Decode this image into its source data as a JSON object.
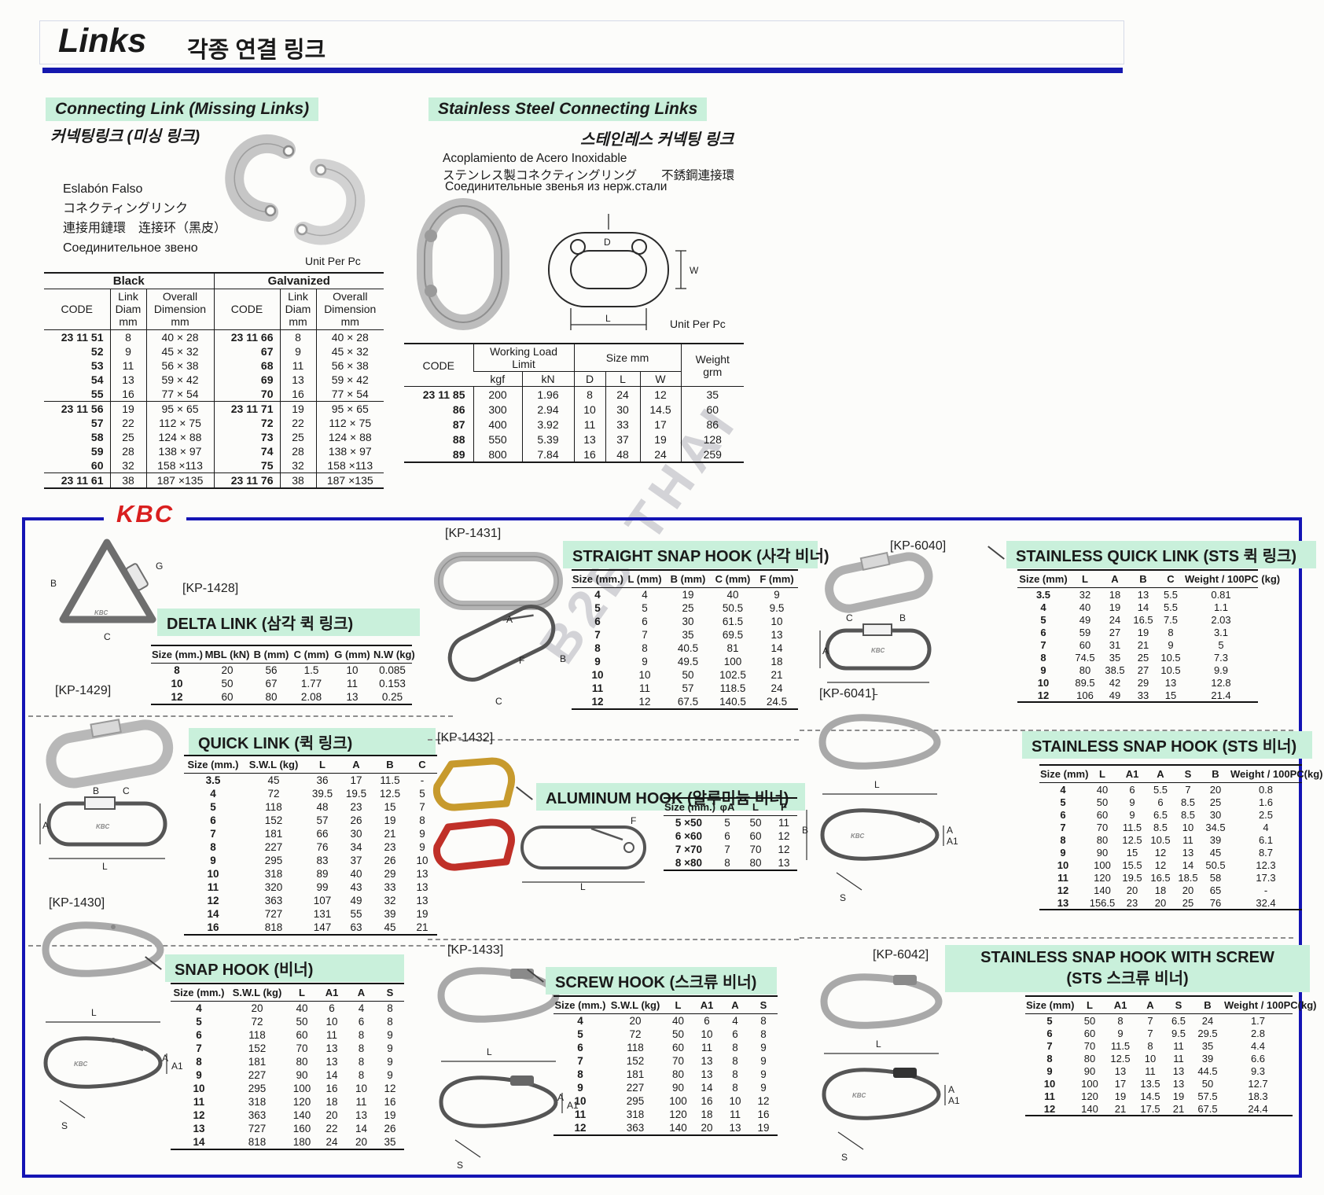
{
  "page": {
    "title_en": "Links",
    "title_ko": "각종 연결 링크",
    "watermark": "B2B THAI"
  },
  "connecting": {
    "title": "Connecting Link (Missing Links)",
    "subtitle_ko": "커넥팅링크 (미싱 링크)",
    "names": [
      "Eslabón Falso",
      "コネクティングリンク",
      "連接用鏈環　连接环（黑皮）",
      "Соединительное звено"
    ],
    "unit": "Unit Per Pc",
    "table": {
      "head": [
        [
          {
            "t": "Black",
            "cs": 3
          },
          {
            "t": "Galvanized",
            "cs": 3
          }
        ],
        [
          {
            "t": "CODE"
          },
          {
            "t": "Link\nDiam\nmm"
          },
          {
            "t": "Overall\nDimension\nmm"
          },
          {
            "t": "CODE"
          },
          {
            "t": "Link\nDiam\nmm"
          },
          {
            "t": "Overall\nDimension\nmm"
          }
        ]
      ],
      "rows": [
        [
          "23 11 51",
          "8",
          "40 × 28",
          "23 11 66",
          "8",
          "40 × 28"
        ],
        [
          "52",
          "9",
          "45 × 32",
          "67",
          "9",
          "45 × 32"
        ],
        [
          "53",
          "11",
          "56 × 38",
          "68",
          "11",
          "56 × 38"
        ],
        [
          "54",
          "13",
          "59 × 42",
          "69",
          "13",
          "59 × 42"
        ],
        [
          "55",
          "16",
          "77 × 54",
          "70",
          "16",
          "77 × 54"
        ],
        [
          "23 11 56",
          "19",
          "95 × 65",
          "23 11 71",
          "19",
          "95 × 65"
        ],
        [
          "57",
          "22",
          "112 × 75",
          "72",
          "22",
          "112 × 75"
        ],
        [
          "58",
          "25",
          "124 × 88",
          "73",
          "25",
          "124 × 88"
        ],
        [
          "59",
          "28",
          "138 × 97",
          "74",
          "28",
          "138 × 97"
        ],
        [
          "60",
          "32",
          "158 ×113",
          "75",
          "32",
          "158 ×113"
        ],
        [
          "23 11 61",
          "38",
          "187 ×135",
          "23 11 76",
          "38",
          "187 ×135"
        ]
      ],
      "seps": [
        5,
        10
      ]
    }
  },
  "stainless": {
    "title": "Stainless Steel Connecting Links",
    "subtitle_ko": "스테인레스 커넥팅 링크",
    "name_es": "Acoplamiento de Acero Inoxidable",
    "name_jp_cn": "ステンレス製コネクティングリング　　不銹鋼連接環",
    "name_ru": "Соединительные звенья из нерж.стали",
    "unit": "Unit Per Pc",
    "diagram_labels": {
      "d": "D",
      "w": "W",
      "l": "L"
    },
    "table": {
      "head": [
        [
          {
            "t": "CODE",
            "rs": 2
          },
          {
            "t": "Working Load\nLimit",
            "cs": 2
          },
          {
            "t": "Size mm",
            "cs": 3
          },
          {
            "t": "Weight\ngrm",
            "rs": 2
          }
        ],
        [
          {
            "t": "kgf"
          },
          {
            "t": "kN"
          },
          {
            "t": "D"
          },
          {
            "t": "L"
          },
          {
            "t": "W"
          }
        ]
      ],
      "rows": [
        [
          "23 11 85",
          "200",
          "1.96",
          "8",
          "24",
          "12",
          "35"
        ],
        [
          "86",
          "300",
          "2.94",
          "10",
          "30",
          "14.5",
          "60"
        ],
        [
          "87",
          "400",
          "3.92",
          "11",
          "33",
          "17",
          "86"
        ],
        [
          "88",
          "550",
          "5.39",
          "13",
          "37",
          "19",
          "128"
        ],
        [
          "89",
          "800",
          "7.84",
          "16",
          "48",
          "24",
          "259"
        ]
      ]
    }
  },
  "kbc": {
    "logo": "KBC",
    "products": {
      "delta": {
        "code": "[KP-1428]",
        "title": "DELTA LINK (삼각 퀵 링크)",
        "labels": {
          "b": "B",
          "c": "C",
          "g": "G"
        },
        "table": {
          "head": [
            [
              "Size (mm.)",
              "MBL (kN)",
              "B (mm)",
              "C (mm)",
              "G (mm)",
              "N.W (kg)"
            ]
          ],
          "rows": [
            [
              "8",
              "20",
              "56",
              "1.5",
              "10",
              "0.085"
            ],
            [
              "10",
              "50",
              "67",
              "1.77",
              "11",
              "0.153"
            ],
            [
              "12",
              "60",
              "80",
              "2.08",
              "13",
              "0.25"
            ]
          ]
        }
      },
      "quick": {
        "code": "[KP-1429]",
        "title": "QUICK LINK (퀵 링크)",
        "labels": {
          "a": "A",
          "b": "B",
          "c": "C",
          "l": "L"
        },
        "table": {
          "head": [
            [
              "Size (mm.)",
              "S.W.L (kg)",
              "L",
              "A",
              "B",
              "C"
            ]
          ],
          "rows": [
            [
              "3.5",
              "45",
              "36",
              "17",
              "11.5",
              "-"
            ],
            [
              "4",
              "72",
              "39.5",
              "19.5",
              "12.5",
              "5"
            ],
            [
              "5",
              "118",
              "48",
              "23",
              "15",
              "7"
            ],
            [
              "6",
              "152",
              "57",
              "26",
              "19",
              "8"
            ],
            [
              "7",
              "181",
              "66",
              "30",
              "21",
              "9"
            ],
            [
              "8",
              "227",
              "76",
              "34",
              "23",
              "9"
            ],
            [
              "9",
              "295",
              "83",
              "37",
              "26",
              "10"
            ],
            [
              "10",
              "318",
              "89",
              "40",
              "29",
              "13"
            ],
            [
              "11",
              "320",
              "99",
              "43",
              "33",
              "13"
            ],
            [
              "12",
              "363",
              "107",
              "49",
              "32",
              "13"
            ],
            [
              "14",
              "727",
              "131",
              "55",
              "39",
              "19"
            ],
            [
              "16",
              "818",
              "147",
              "63",
              "45",
              "21"
            ]
          ]
        }
      },
      "snap": {
        "code": "[KP-1430]",
        "title": "SNAP HOOK (비너)",
        "labels": {
          "l": "L",
          "a": "A",
          "a1": "A1",
          "s": "S"
        },
        "table": {
          "head": [
            [
              "Size (mm.)",
              "S.W.L (kg)",
              "L",
              "A1",
              "A",
              "S"
            ]
          ],
          "rows": [
            [
              "4",
              "20",
              "40",
              "6",
              "4",
              "8"
            ],
            [
              "5",
              "72",
              "50",
              "10",
              "6",
              "8"
            ],
            [
              "6",
              "118",
              "60",
              "11",
              "8",
              "9"
            ],
            [
              "7",
              "152",
              "70",
              "13",
              "8",
              "9"
            ],
            [
              "8",
              "181",
              "80",
              "13",
              "8",
              "9"
            ],
            [
              "9",
              "227",
              "90",
              "14",
              "8",
              "9"
            ],
            [
              "10",
              "295",
              "100",
              "16",
              "10",
              "12"
            ],
            [
              "11",
              "318",
              "120",
              "18",
              "11",
              "16"
            ],
            [
              "12",
              "363",
              "140",
              "20",
              "13",
              "19"
            ],
            [
              "13",
              "727",
              "160",
              "22",
              "14",
              "26"
            ],
            [
              "14",
              "818",
              "180",
              "24",
              "20",
              "35"
            ]
          ]
        }
      },
      "straight": {
        "code": "[KP-1431]",
        "title": "STRAIGHT SNAP HOOK (사각 비너)",
        "labels": {
          "a": "A",
          "b": "B",
          "c": "C",
          "f": "F"
        },
        "table": {
          "head": [
            [
              "Size (mm.)",
              "L (mm)",
              "B (mm)",
              "C (mm)",
              "F (mm)"
            ]
          ],
          "rows": [
            [
              "4",
              "4",
              "19",
              "40",
              "9"
            ],
            [
              "5",
              "5",
              "25",
              "50.5",
              "9.5"
            ],
            [
              "6",
              "6",
              "30",
              "61.5",
              "10"
            ],
            [
              "7",
              "7",
              "35",
              "69.5",
              "13"
            ],
            [
              "8",
              "8",
              "40.5",
              "81",
              "14"
            ],
            [
              "9",
              "9",
              "49.5",
              "100",
              "18"
            ],
            [
              "10",
              "10",
              "50",
              "102.5",
              "21"
            ],
            [
              "11",
              "11",
              "57",
              "118.5",
              "24"
            ],
            [
              "12",
              "12",
              "67.5",
              "140.5",
              "24.5"
            ]
          ]
        }
      },
      "aluminum": {
        "code": "[KP-1432]",
        "title": "ALUMINUM HOOK (알루미늄 비너)",
        "labels": {
          "l": "L",
          "f": "F"
        },
        "table": {
          "head": [
            [
              "Size (mm.)",
              "φA",
              "L",
              "F"
            ]
          ],
          "rows": [
            [
              "5 ×50",
              "5",
              "50",
              "11"
            ],
            [
              "6 ×60",
              "6",
              "60",
              "12"
            ],
            [
              "7 ×70",
              "7",
              "70",
              "12"
            ],
            [
              "8 ×80",
              "8",
              "80",
              "13"
            ]
          ]
        }
      },
      "screw": {
        "code": "[KP-1433]",
        "title": "SCREW HOOK (스크류 비너)",
        "labels": {
          "l": "L",
          "a": "A",
          "a1": "A1",
          "s": "S"
        },
        "table": {
          "head": [
            [
              "Size (mm.)",
              "S.W.L (kg)",
              "L",
              "A1",
              "A",
              "S"
            ]
          ],
          "rows": [
            [
              "4",
              "20",
              "40",
              "6",
              "4",
              "8"
            ],
            [
              "5",
              "72",
              "50",
              "10",
              "6",
              "8"
            ],
            [
              "6",
              "118",
              "60",
              "11",
              "8",
              "9"
            ],
            [
              "7",
              "152",
              "70",
              "13",
              "8",
              "9"
            ],
            [
              "8",
              "181",
              "80",
              "13",
              "8",
              "9"
            ],
            [
              "9",
              "227",
              "90",
              "14",
              "8",
              "9"
            ],
            [
              "10",
              "295",
              "100",
              "16",
              "10",
              "12"
            ],
            [
              "11",
              "318",
              "120",
              "18",
              "11",
              "16"
            ],
            [
              "12",
              "363",
              "140",
              "20",
              "13",
              "19"
            ]
          ]
        }
      },
      "sts_quick": {
        "code": "[KP-6040]",
        "title": "STAINLESS QUICK LINK (STS 퀵 링크)",
        "labels": {
          "a": "A",
          "b": "B",
          "c": "C",
          "l": "L"
        },
        "table": {
          "head": [
            [
              "Size (mm)",
              "L",
              "A",
              "B",
              "C",
              "Weight / 100PC (kg)"
            ]
          ],
          "rows": [
            [
              "3.5",
              "32",
              "18",
              "13",
              "5.5",
              "0.81"
            ],
            [
              "4",
              "40",
              "19",
              "14",
              "5.5",
              "1.1"
            ],
            [
              "5",
              "49",
              "24",
              "16.5",
              "7.5",
              "2.03"
            ],
            [
              "6",
              "59",
              "27",
              "19",
              "8",
              "3.1"
            ],
            [
              "7",
              "60",
              "31",
              "21",
              "9",
              "5"
            ],
            [
              "8",
              "74.5",
              "35",
              "25",
              "10.5",
              "7.3"
            ],
            [
              "9",
              "80",
              "38.5",
              "27",
              "10.5",
              "9.9"
            ],
            [
              "10",
              "89.5",
              "42",
              "29",
              "13",
              "12.8"
            ],
            [
              "12",
              "106",
              "49",
              "33",
              "15",
              "21.4"
            ]
          ]
        }
      },
      "sts_snap": {
        "code": "[KP-6041]",
        "title": "STAINLESS SNAP HOOK (STS 비너)",
        "labels": {
          "l": "L",
          "a": "A",
          "a1": "A1",
          "s": "S",
          "b": "B"
        },
        "table": {
          "head": [
            [
              "Size (mm)",
              "L",
              "A1",
              "A",
              "S",
              "B",
              "Weight / 100PC(kg)"
            ]
          ],
          "rows": [
            [
              "4",
              "40",
              "6",
              "5.5",
              "7",
              "20",
              "0.8"
            ],
            [
              "5",
              "50",
              "9",
              "6",
              "8.5",
              "25",
              "1.6"
            ],
            [
              "6",
              "60",
              "9",
              "6.5",
              "8.5",
              "30",
              "2.5"
            ],
            [
              "7",
              "70",
              "11.5",
              "8.5",
              "10",
              "34.5",
              "4"
            ],
            [
              "8",
              "80",
              "12.5",
              "10.5",
              "11",
              "39",
              "6.1"
            ],
            [
              "9",
              "90",
              "15",
              "12",
              "13",
              "45",
              "8.7"
            ],
            [
              "10",
              "100",
              "15.5",
              "12",
              "14",
              "50.5",
              "12.3"
            ],
            [
              "11",
              "120",
              "19.5",
              "16.5",
              "18.5",
              "58",
              "17.3"
            ],
            [
              "12",
              "140",
              "20",
              "18",
              "20",
              "65",
              "-"
            ],
            [
              "13",
              "156.5",
              "23",
              "20",
              "25",
              "76",
              "32.4"
            ]
          ]
        }
      },
      "sts_screw": {
        "code": "[KP-6042]",
        "title_line1": "STAINLESS SNAP HOOK WITH SCREW",
        "title_line2": "(STS 스크류 비너)",
        "labels": {
          "l": "L",
          "a": "A",
          "a1": "A1",
          "s": "S"
        },
        "table": {
          "head": [
            [
              "Size (mm)",
              "L",
              "A1",
              "A",
              "S",
              "B",
              "Weight / 100PC(kg)"
            ]
          ],
          "rows": [
            [
              "5",
              "50",
              "8",
              "7",
              "6.5",
              "24",
              "1.7"
            ],
            [
              "6",
              "60",
              "9",
              "7",
              "9.5",
              "29.5",
              "2.8"
            ],
            [
              "7",
              "70",
              "11.5",
              "8",
              "11",
              "35",
              "4.4"
            ],
            [
              "8",
              "80",
              "12.5",
              "10",
              "11",
              "39",
              "6.6"
            ],
            [
              "9",
              "90",
              "13",
              "11",
              "13",
              "44.5",
              "9.3"
            ],
            [
              "10",
              "100",
              "17",
              "13.5",
              "13",
              "50",
              "12.7"
            ],
            [
              "11",
              "120",
              "19",
              "14.5",
              "19",
              "57.5",
              "18.3"
            ],
            [
              "12",
              "140",
              "21",
              "17.5",
              "21",
              "67.5",
              "24.4"
            ]
          ]
        }
      }
    }
  }
}
